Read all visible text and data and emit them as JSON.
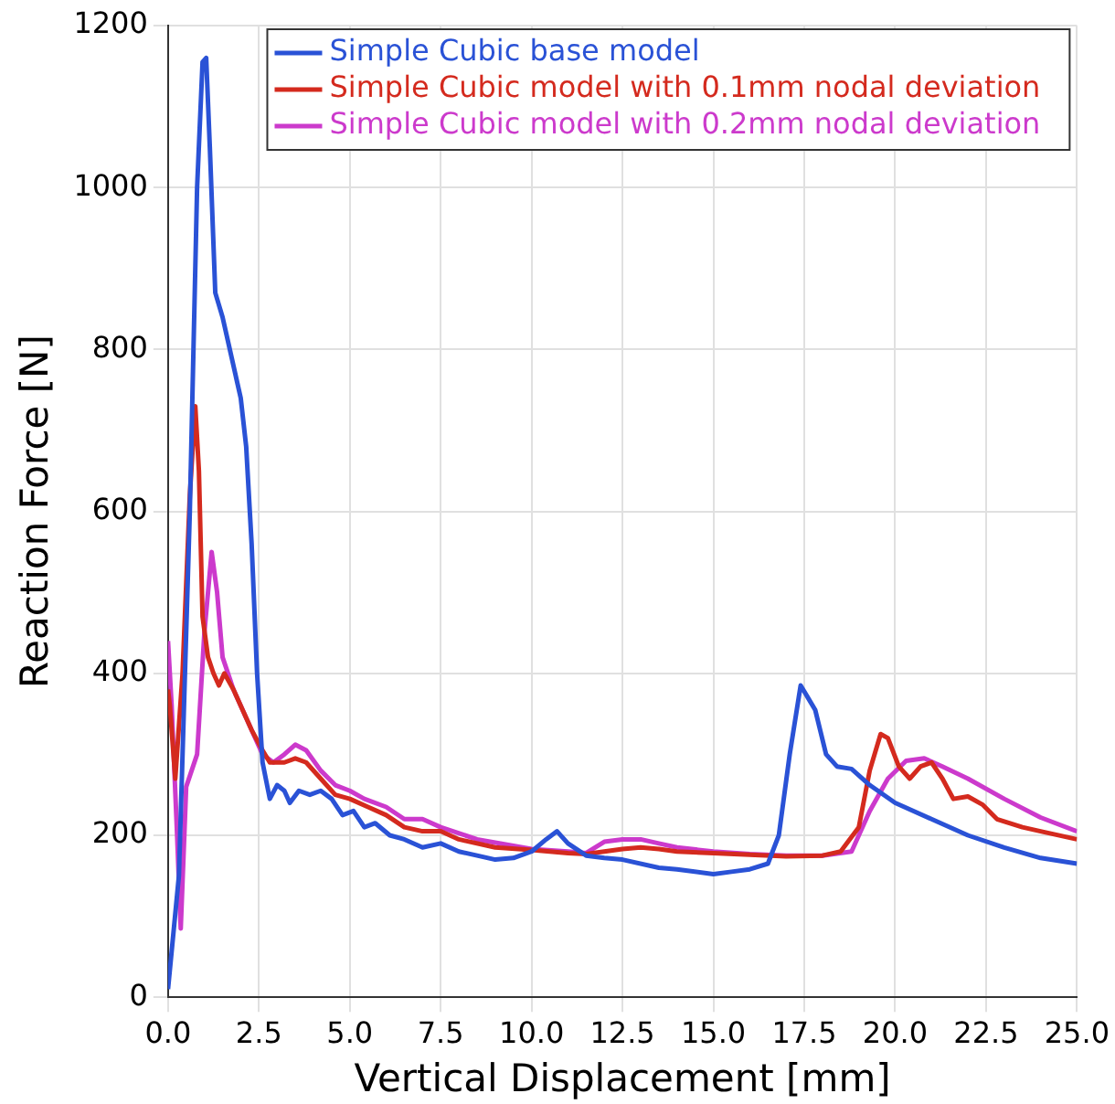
{
  "chart_data": {
    "type": "line",
    "xlabel": "Vertical Displacement [mm]",
    "ylabel": "Reaction Force [N]",
    "xlim": [
      0,
      25
    ],
    "ylim": [
      0,
      1200
    ],
    "xticks": [
      {
        "value": 0,
        "label": "0.0"
      },
      {
        "value": 2.5,
        "label": "2.5"
      },
      {
        "value": 5,
        "label": "5.0"
      },
      {
        "value": 7.5,
        "label": "7.5"
      },
      {
        "value": 10,
        "label": "10.0"
      },
      {
        "value": 12.5,
        "label": "12.5"
      },
      {
        "value": 15,
        "label": "15.0"
      },
      {
        "value": 17.5,
        "label": "17.5"
      },
      {
        "value": 20,
        "label": "20.0"
      },
      {
        "value": 22.5,
        "label": "22.5"
      },
      {
        "value": 25,
        "label": "25.0"
      }
    ],
    "yticks": [
      0,
      200,
      400,
      600,
      800,
      1000,
      1200
    ],
    "grid": true,
    "legend": "top right",
    "marker": "none",
    "line_style": "solid",
    "series": [
      {
        "name": "Simple Cubic base model",
        "color": "#2a52d6",
        "x": [
          0,
          0.3,
          0.6,
          0.8,
          0.95,
          1.05,
          1.15,
          1.3,
          1.5,
          1.7,
          1.9,
          2.0,
          2.15,
          2.3,
          2.45,
          2.6,
          2.8,
          3.0,
          3.2,
          3.35,
          3.6,
          3.9,
          4.2,
          4.5,
          4.8,
          5.1,
          5.4,
          5.7,
          6.1,
          6.5,
          7,
          7.5,
          8,
          8.5,
          9,
          9.5,
          10,
          10.4,
          10.7,
          11.0,
          11.5,
          12,
          12.5,
          13.5,
          14,
          15,
          15.5,
          16,
          16.5,
          16.8,
          17.1,
          17.4,
          17.6,
          17.8,
          18.1,
          18.4,
          18.8,
          19.3,
          20,
          21,
          22,
          23,
          24,
          25
        ],
        "values": [
          10,
          150,
          600,
          1000,
          1155,
          1160,
          1050,
          870,
          840,
          800,
          760,
          740,
          680,
          560,
          400,
          290,
          245,
          262,
          255,
          240,
          255,
          250,
          255,
          245,
          225,
          230,
          210,
          215,
          200,
          195,
          185,
          190,
          180,
          175,
          170,
          172,
          180,
          195,
          205,
          190,
          175,
          172,
          170,
          160,
          158,
          152,
          155,
          158,
          165,
          200,
          300,
          385,
          370,
          355,
          300,
          285,
          282,
          262,
          240,
          220,
          200,
          185,
          172,
          165
        ]
      },
      {
        "name": "Simple Cubic model with 0.1mm nodal deviation",
        "color": "#d42a1e",
        "x": [
          0,
          0.05,
          0.2,
          0.4,
          0.6,
          0.75,
          0.85,
          0.95,
          1.1,
          1.25,
          1.4,
          1.55,
          1.8,
          2.0,
          2.3,
          2.6,
          2.8,
          3.2,
          3.5,
          3.8,
          4.2,
          4.6,
          5,
          5.5,
          6,
          6.5,
          7,
          7.5,
          8,
          9,
          10,
          11,
          11.5,
          12,
          12.5,
          13,
          13.5,
          14,
          15,
          16,
          17,
          18,
          18.5,
          19,
          19.3,
          19.6,
          19.8,
          20.1,
          20.4,
          20.7,
          21,
          21.3,
          21.6,
          22,
          22.4,
          22.8,
          23.5,
          24,
          25
        ],
        "values": [
          380,
          360,
          270,
          400,
          620,
          730,
          650,
          470,
          420,
          400,
          385,
          400,
          380,
          360,
          330,
          305,
          290,
          290,
          295,
          290,
          270,
          250,
          245,
          235,
          225,
          210,
          205,
          205,
          195,
          185,
          182,
          178,
          177,
          180,
          183,
          185,
          183,
          180,
          178,
          176,
          174,
          175,
          180,
          210,
          280,
          325,
          320,
          285,
          270,
          285,
          290,
          270,
          245,
          248,
          238,
          220,
          210,
          205,
          195
        ]
      },
      {
        "name": "Simple Cubic model with 0.2mm nodal deviation",
        "color": "#cc3acc",
        "x": [
          0,
          0.1,
          0.25,
          0.35,
          0.5,
          0.65,
          0.8,
          1.0,
          1.2,
          1.35,
          1.5,
          1.8,
          2.2,
          2.6,
          2.9,
          3.2,
          3.5,
          3.8,
          4.2,
          4.6,
          5,
          5.4,
          6,
          6.5,
          7,
          7.5,
          8.5,
          10,
          11,
          11.5,
          12,
          12.5,
          13,
          13.5,
          14,
          15,
          16,
          17,
          18,
          18.8,
          19.3,
          19.8,
          20.3,
          20.8,
          21.3,
          22,
          23,
          24,
          25
        ],
        "values": [
          440,
          360,
          200,
          85,
          260,
          280,
          300,
          450,
          550,
          500,
          420,
          380,
          340,
          300,
          290,
          300,
          312,
          305,
          280,
          262,
          255,
          245,
          235,
          220,
          220,
          210,
          195,
          183,
          180,
          178,
          192,
          195,
          195,
          190,
          185,
          180,
          177,
          175,
          175,
          180,
          230,
          270,
          292,
          295,
          285,
          270,
          245,
          222,
          205
        ]
      }
    ]
  }
}
